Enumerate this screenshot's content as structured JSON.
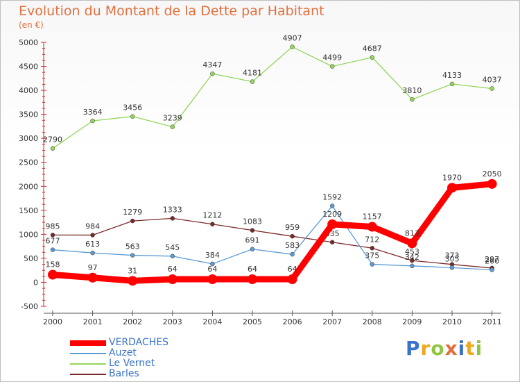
{
  "chart_data": {
    "type": "line",
    "title": "Evolution du Montant de la Dette par Habitant",
    "subtitle": "(en €)",
    "x": [
      "2000",
      "2001",
      "2002",
      "2003",
      "2004",
      "2005",
      "2006",
      "2007",
      "2008",
      "2009",
      "2010",
      "2011"
    ],
    "ylim": [
      -500,
      5000
    ],
    "yticks": [
      5000,
      4500,
      4000,
      3500,
      3000,
      2500,
      2000,
      1500,
      1000,
      500,
      0,
      -500
    ],
    "grid": false,
    "legend_position": "bottom-left",
    "series": [
      {
        "name": "VERDACHES",
        "color": "#ff0000",
        "values": [
          158,
          97,
          31,
          64,
          64,
          64,
          64,
          1209,
          1157,
          813,
          1970,
          2050
        ]
      },
      {
        "name": "Auzet",
        "color": "#5b9bd5",
        "values": [
          677,
          613,
          563,
          545,
          384,
          691,
          583,
          1592,
          375,
          342,
          305,
          260
        ]
      },
      {
        "name": "Le Vernet",
        "color": "#93d65a",
        "values": [
          2790,
          3364,
          3456,
          3239,
          4347,
          4181,
          4907,
          4499,
          4687,
          3810,
          4133,
          4037
        ]
      },
      {
        "name": "Barles",
        "color": "#7b2a2a",
        "values": [
          985,
          984,
          1279,
          1333,
          1212,
          1083,
          959,
          835,
          712,
          453,
          373,
          297
        ]
      }
    ]
  },
  "logo": {
    "parts": [
      "Pro",
      "x",
      "iti"
    ],
    "colors": [
      "#3b73c8",
      "#f0a81e",
      "#8fc63f",
      "#e2703e"
    ]
  }
}
